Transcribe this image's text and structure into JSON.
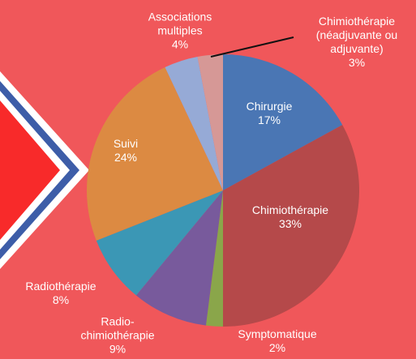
{
  "chart_data": {
    "type": "pie",
    "categories": [
      "Chirurgie",
      "Chimiothérapie",
      "Symptomatique",
      "Radio-chimiothérapie",
      "Radiothérapie",
      "Suivi",
      "Associations multiples",
      "Chimiothérapie (néadjuvante ou adjuvante)"
    ],
    "values": [
      17,
      33,
      2,
      9,
      8,
      24,
      4,
      3
    ],
    "value_labels": [
      "17%",
      "33%",
      "2%",
      "9%",
      "8%",
      "24%",
      "4%",
      "3%"
    ],
    "colors": [
      "#4a76b4",
      "#b5494a",
      "#8aa64a",
      "#785a9c",
      "#3b97b5",
      "#dc8a42",
      "#96aad6",
      "#d69896"
    ]
  }
}
